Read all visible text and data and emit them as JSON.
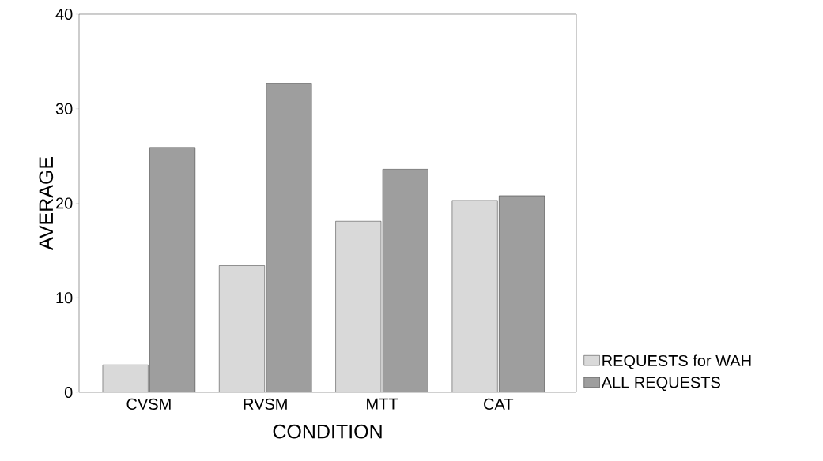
{
  "chart_data": {
    "type": "bar",
    "xlabel": "CONDITION",
    "ylabel": "AVERAGE",
    "categories": [
      "CVSM",
      "RVSM",
      "MTT",
      "CAT"
    ],
    "series": [
      {
        "name": "REQUESTS for WAH",
        "color": "#d9d9d9",
        "values": [
          2.9,
          13.4,
          18.1,
          20.3
        ]
      },
      {
        "name": "ALL REQUESTS",
        "color": "#9e9e9e",
        "values": [
          25.9,
          32.7,
          23.6,
          20.8
        ]
      }
    ],
    "ylim": [
      0,
      40
    ],
    "yticks": [
      0,
      10,
      20,
      30,
      40
    ],
    "grid": false,
    "legend": "bottom right"
  }
}
